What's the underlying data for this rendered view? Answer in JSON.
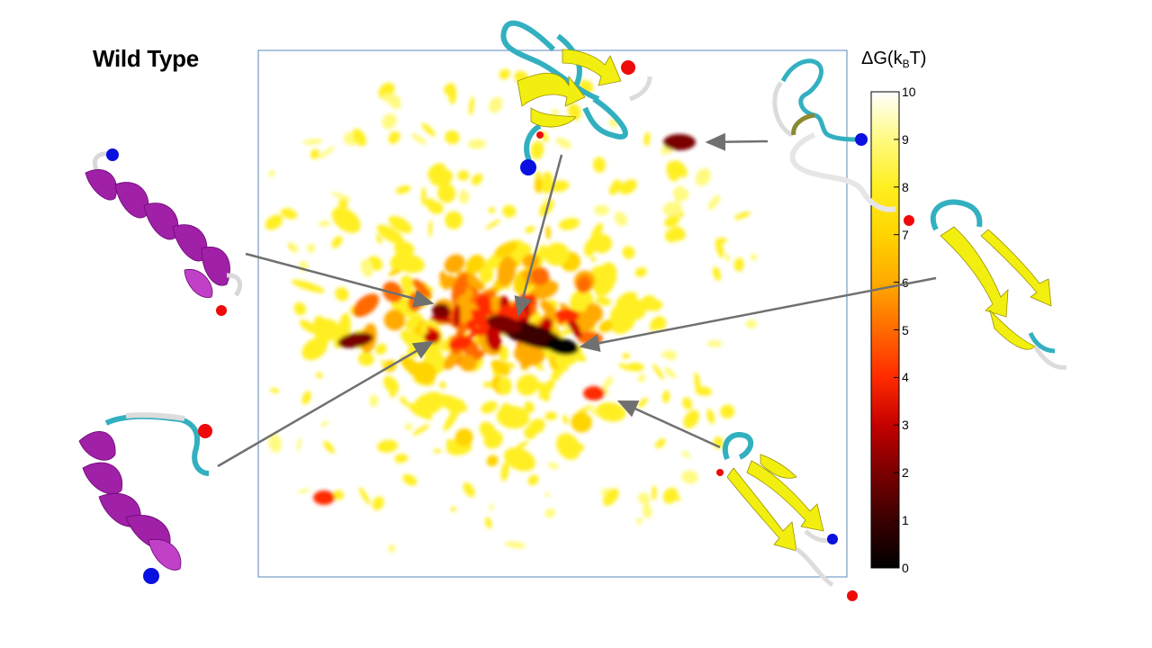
{
  "title": "Wild Type",
  "colorbar": {
    "label_main": "ΔG(k",
    "label_sub": "B",
    "label_end": "T)",
    "ticks": [
      "0",
      "1",
      "2",
      "3",
      "4",
      "5",
      "6",
      "7",
      "8",
      "9",
      "10"
    ],
    "min": 0,
    "max": 10,
    "stops": [
      "#000000",
      "#3a0000",
      "#7a0000",
      "#c40000",
      "#ff2a00",
      "#ff6a00",
      "#ffaa00",
      "#ffd400",
      "#ffef20",
      "#fffa80",
      "#ffffff"
    ]
  },
  "structures": [
    {
      "name": "helix-top-left",
      "type": "helix",
      "color": "#a020a8"
    },
    {
      "name": "helix-bottom-left",
      "type": "helix",
      "color": "#a020a8"
    },
    {
      "name": "hairpin-top-center",
      "type": "beta-hairpin",
      "color": "#f2ef10"
    },
    {
      "name": "coil-top-right",
      "type": "coil",
      "color": "#e8e8e8"
    },
    {
      "name": "hairpin-right",
      "type": "beta-hairpin",
      "color": "#f2ef10"
    },
    {
      "name": "hairpin-bottom-right",
      "type": "beta-hairpin",
      "color": "#f2ef10"
    }
  ],
  "colors": {
    "n_terminus": "#0a10e0",
    "c_terminus": "#ee0a0a",
    "loop": "#33b0c0",
    "arrow": "#707070",
    "frame": "#5a8ab8"
  }
}
